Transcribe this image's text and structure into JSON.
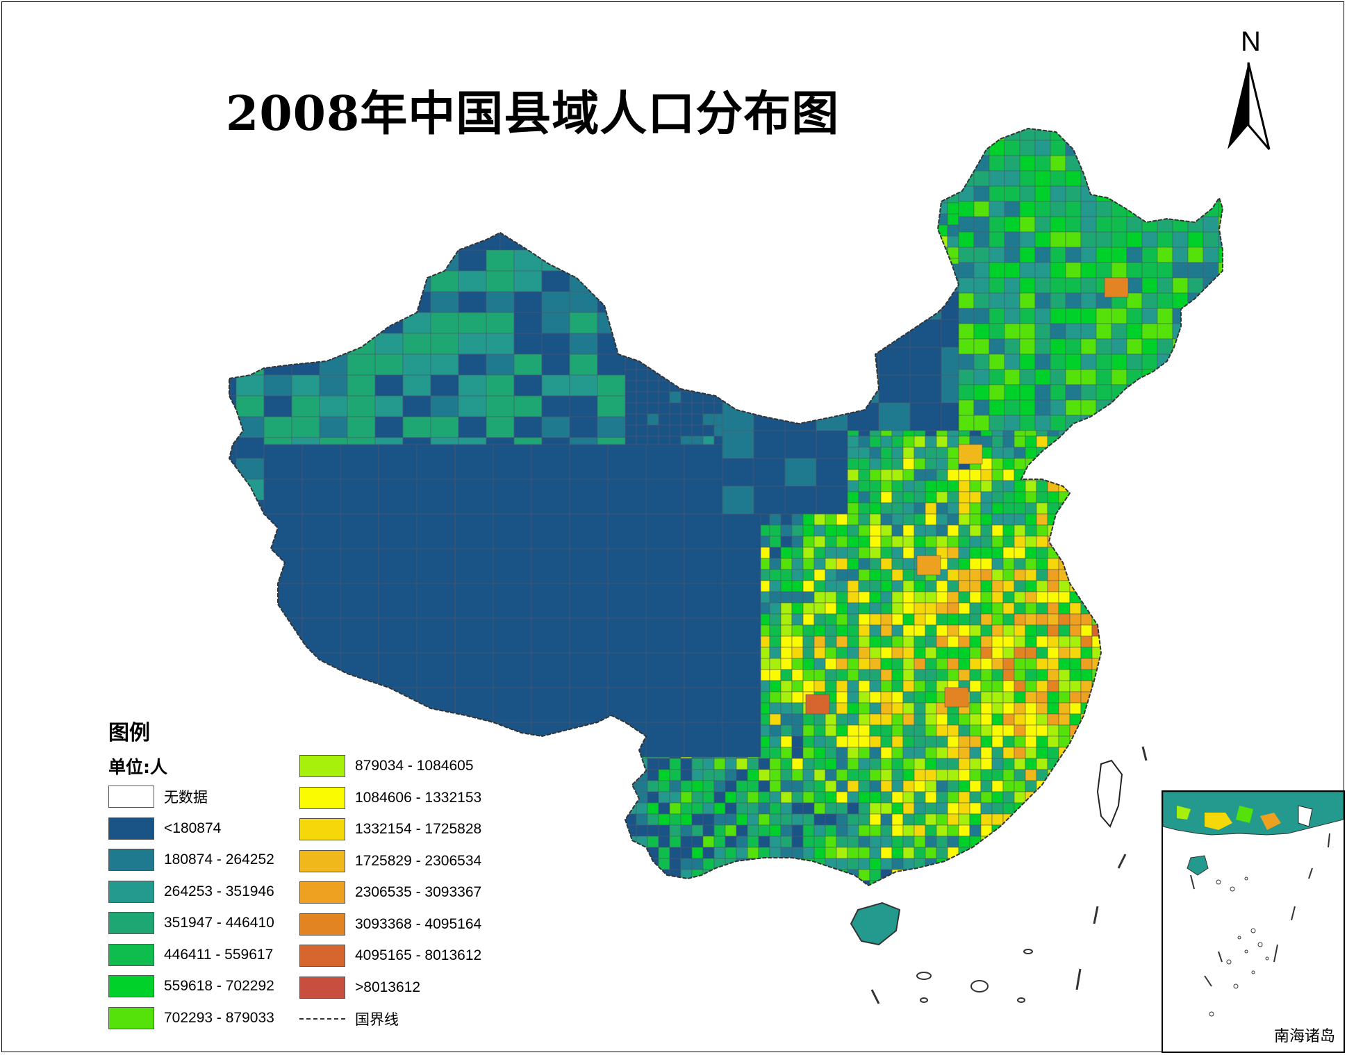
{
  "title": "2008年中国县域人口分布图",
  "north_arrow": "N",
  "north_arrow_icon": "north-arrow-icon",
  "legend": {
    "title": "图例",
    "unit": "单位:人",
    "items_left": [
      {
        "label": "无数据",
        "color": "#ffffff"
      },
      {
        "label": "<180874",
        "color": "#1a5385"
      },
      {
        "label": "180874 - 264252",
        "color": "#207a8f"
      },
      {
        "label": "264253 - 351946",
        "color": "#249a8e"
      },
      {
        "label": "351947 - 446410",
        "color": "#1fa773"
      },
      {
        "label": "446411 - 559617",
        "color": "#0fbd4e"
      },
      {
        "label": "559618 - 702292",
        "color": "#00d02a"
      },
      {
        "label": "702293 - 879033",
        "color": "#55e20a"
      }
    ],
    "items_right": [
      {
        "label": "879034 - 1084605",
        "color": "#a6f00c"
      },
      {
        "label": "1084606 - 1332153",
        "color": "#fafa00"
      },
      {
        "label": "1332154 - 1725828",
        "color": "#f5d80a"
      },
      {
        "label": "1725829 - 2306534",
        "color": "#f0b81a"
      },
      {
        "label": "2306535 - 3093367",
        "color": "#eea020"
      },
      {
        "label": "3093368 - 4095164",
        "color": "#e28422"
      },
      {
        "label": "4095165 - 8013612",
        "color": "#d6662e"
      },
      {
        "label": ">8013612",
        "color": "#c84e3e"
      }
    ],
    "boundary_label": "国界线"
  },
  "inset": {
    "label": "南海诸岛"
  }
}
